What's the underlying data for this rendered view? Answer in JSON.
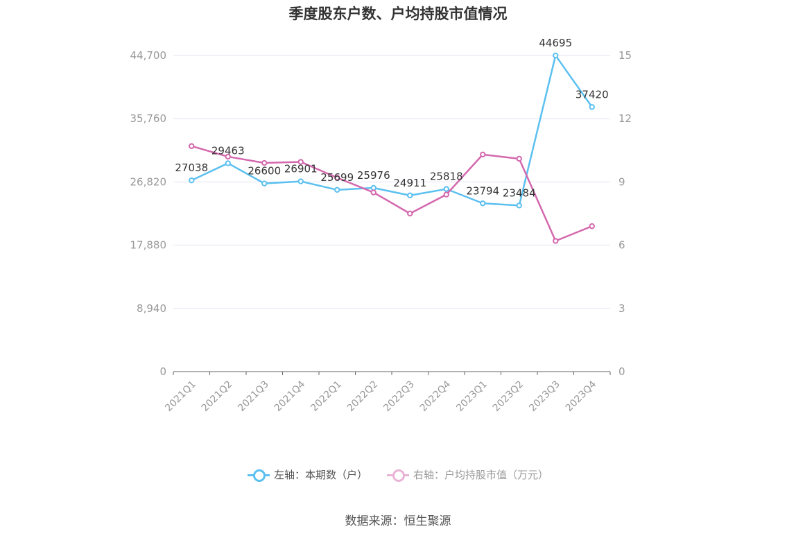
{
  "title": "季度股东户数、户均持股市值情况",
  "source_note": "数据来源：恒生聚源",
  "colors": {
    "left_series": "#5bc0f0",
    "right_series": "#d468ae",
    "grid": "#e0e6f1",
    "axis": "#666666"
  },
  "chart_data": {
    "type": "line",
    "title": "季度股东户数、户均持股市值情况",
    "categories": [
      "2021Q1",
      "2021Q2",
      "2021Q3",
      "2021Q4",
      "2022Q1",
      "2022Q2",
      "2022Q3",
      "2022Q4",
      "2023Q1",
      "2023Q2",
      "2023Q3",
      "2023Q4"
    ],
    "left_axis": {
      "ticks": [
        "0",
        "8,940",
        "17,880",
        "26,820",
        "35,760",
        "44,700"
      ],
      "ylim": [
        0,
        44700
      ]
    },
    "right_axis": {
      "ticks": [
        "0",
        "3",
        "6",
        "9",
        "12",
        "15"
      ],
      "ylim": [
        0,
        15
      ]
    },
    "series": [
      {
        "name": "左轴：本期数（户）",
        "axis": "left",
        "values": [
          27038,
          29463,
          26600,
          26901,
          25699,
          25976,
          24911,
          25818,
          23794,
          23484,
          44695,
          37420
        ],
        "labels": [
          "27038",
          "29463",
          "26600",
          "26901",
          "25699",
          "25976",
          "24911",
          "25818",
          "23794",
          "23484",
          "44695",
          "37420"
        ]
      },
      {
        "name": "右轴：户均持股市值（万元）",
        "axis": "right",
        "values": [
          10.7,
          10.2,
          9.9,
          9.95,
          9.2,
          8.5,
          7.5,
          8.4,
          10.3,
          10.1,
          6.2,
          6.9
        ]
      }
    ],
    "grid": true,
    "legend_position": "bottom"
  }
}
